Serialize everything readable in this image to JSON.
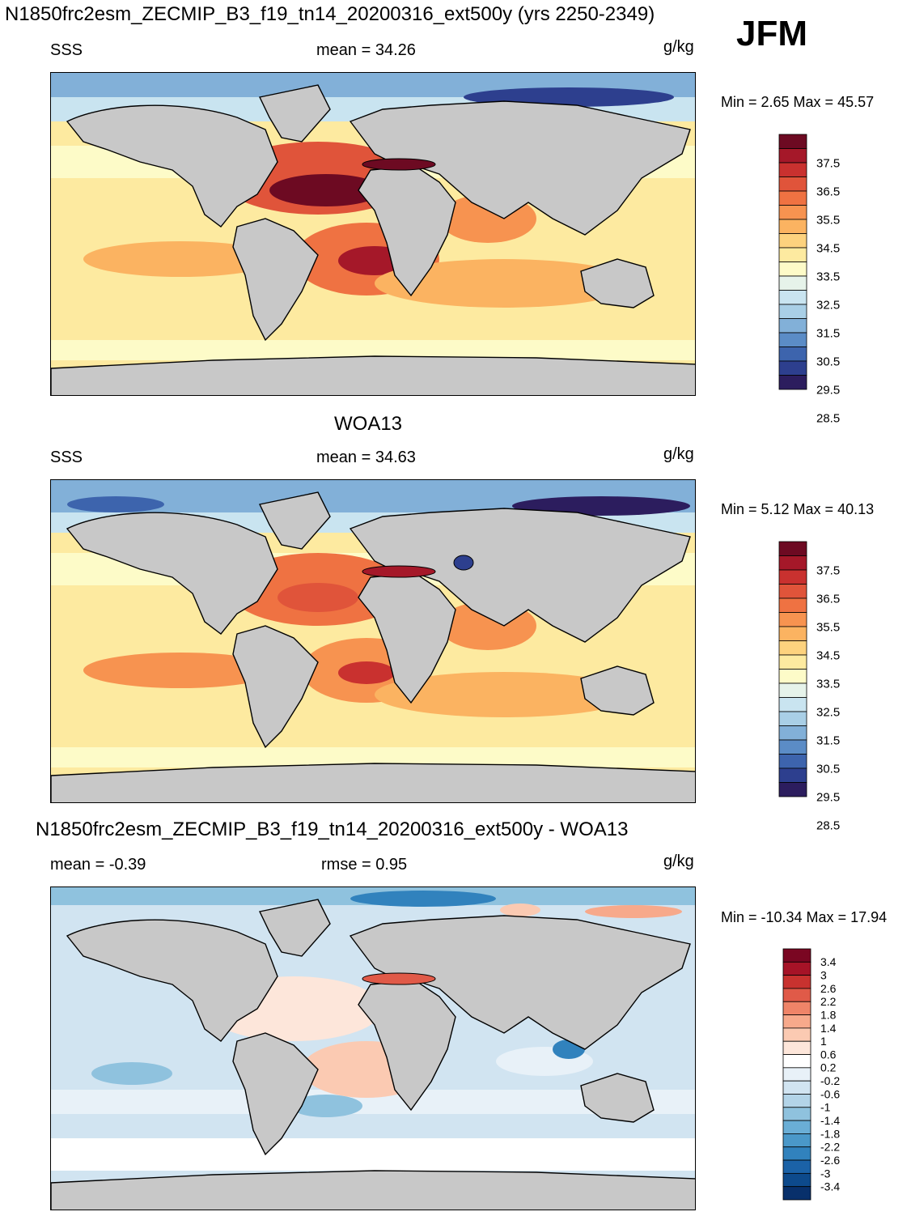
{
  "header": {
    "main_title": "N1850frc2esm_ZECMIP_B3_f19_tn14_20200316_ext500y (yrs 2250-2349)",
    "season": "JFM"
  },
  "panels": [
    {
      "id": "model",
      "title": "",
      "left_label": "SSS",
      "center_label": "mean =  34.26",
      "units": "g/kg",
      "minmax": "Min =   2.65 Max =  45.57",
      "colorbar_labels": [
        "37.5",
        "36.5",
        "35.5",
        "34.5",
        "33.5",
        "32.5",
        "31.5",
        "30.5",
        "29.5",
        "28.5"
      ]
    },
    {
      "id": "obs",
      "title": "WOA13",
      "left_label": "SSS",
      "center_label": "mean =  34.63",
      "units": "g/kg",
      "minmax": "Min =   5.12 Max =  40.13",
      "colorbar_labels": [
        "37.5",
        "36.5",
        "35.5",
        "34.5",
        "33.5",
        "32.5",
        "31.5",
        "30.5",
        "29.5",
        "28.5"
      ]
    },
    {
      "id": "diff",
      "title": "N1850frc2esm_ZECMIP_B3_f19_tn14_20200316_ext500y - WOA13",
      "left_label": "mean =  -0.39",
      "center_label": "rmse =   0.95",
      "units": "g/kg",
      "minmax": "Min = -10.34 Max =  17.94",
      "colorbar_labels": [
        "3.4",
        "3",
        "2.6",
        "2.2",
        "1.8",
        "1.4",
        "1",
        "0.6",
        "0.2",
        "-0.2",
        "-0.6",
        "-1",
        "-1.4",
        "-1.8",
        "-2.2",
        "-2.6",
        "-3",
        "-3.4"
      ]
    }
  ],
  "colors": {
    "land": "#c8c8c8",
    "abs_scale": [
      "#2c1d5e",
      "#2d3f8e",
      "#3d64ad",
      "#5b8cc6",
      "#82b0d8",
      "#a9cfe6",
      "#c9e4f0",
      "#e6f3ea",
      "#fdfbc8",
      "#fdeaa0",
      "#fdd27e",
      "#fbb361",
      "#f79350",
      "#ef7242",
      "#e0543a",
      "#c9312f",
      "#a51829",
      "#6d0a22"
    ],
    "diff_scale": [
      "#08306b",
      "#0d4a8c",
      "#1b62a7",
      "#3182bd",
      "#4a98c9",
      "#6aaed6",
      "#8fc2de",
      "#b3d4e8",
      "#d1e4f1",
      "#e8f1f8",
      "#ffffff",
      "#fde6da",
      "#fbcab2",
      "#f7a98b",
      "#ef8468",
      "#e05a48",
      "#c8322f",
      "#a61327",
      "#7a0622"
    ]
  }
}
